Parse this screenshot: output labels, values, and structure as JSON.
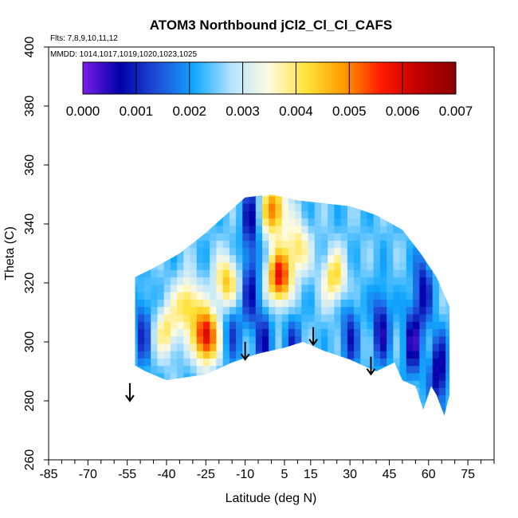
{
  "chart_data": {
    "type": "heatmap",
    "title": "ATOM3 Northbound jCl2_Cl_Cl_CAFS",
    "flights_note": "Flts: 7,8,9,10,11,12",
    "dates_note": "MMDD: 1014,1017,1019,1020,1023,1025",
    "xlabel": "Latitude (deg N)",
    "ylabel": "Theta (C)",
    "xlim": [
      -85,
      85
    ],
    "ylim": [
      260,
      400
    ],
    "x_ticks": [
      -85,
      -70,
      -55,
      -40,
      -25,
      -10,
      5,
      15,
      30,
      45,
      60,
      75
    ],
    "y_ticks": [
      260,
      280,
      300,
      320,
      340,
      360,
      380,
      400
    ],
    "colorbar": {
      "range": [
        0,
        0.007
      ],
      "tick_values": [
        0,
        0.001,
        0.002,
        0.003,
        0.004,
        0.005,
        0.006,
        0.007
      ],
      "tick_labels": [
        "0.000",
        "0.001",
        "0.002",
        "0.003",
        "0.004",
        "0.005",
        "0.006",
        "0.007"
      ],
      "colors": [
        "#7a1fe8",
        "#0000a8",
        "#1f4fd8",
        "#12a8ff",
        "#b8e4ff",
        "#fffbe0",
        "#ffe23a",
        "#ff9a00",
        "#ff1a00",
        "#c00000",
        "#8a0000"
      ]
    },
    "boundary_top": [
      [
        -52,
        322
      ],
      [
        -45,
        325
      ],
      [
        -35,
        330
      ],
      [
        -25,
        337
      ],
      [
        -15,
        345
      ],
      [
        -10,
        349
      ],
      [
        0,
        350
      ],
      [
        10,
        348
      ],
      [
        20,
        347
      ],
      [
        30,
        346
      ],
      [
        40,
        343
      ],
      [
        50,
        338
      ],
      [
        57,
        330
      ],
      [
        63,
        322
      ],
      [
        68,
        312
      ]
    ],
    "boundary_bottom": [
      [
        -52,
        292
      ],
      [
        -48,
        290
      ],
      [
        -40,
        287
      ],
      [
        -25,
        289
      ],
      [
        -15,
        293
      ],
      [
        -5,
        296
      ],
      [
        5,
        298
      ],
      [
        12,
        300
      ],
      [
        20,
        297
      ],
      [
        30,
        294
      ],
      [
        40,
        290
      ],
      [
        47,
        293
      ],
      [
        50,
        287
      ],
      [
        55,
        285
      ],
      [
        58,
        277
      ],
      [
        61,
        285
      ],
      [
        63,
        282
      ],
      [
        66,
        275
      ],
      [
        68,
        282
      ]
    ],
    "hotspots": [
      {
        "lat": -25,
        "theta": 302,
        "value": 0.0062
      },
      {
        "lat": 3,
        "theta": 322,
        "value": 0.0058
      },
      {
        "lat": 1,
        "theta": 345,
        "value": 0.0052
      },
      {
        "lat": -17,
        "theta": 320,
        "value": 0.0046
      },
      {
        "lat": -32,
        "theta": 313,
        "value": 0.0044
      },
      {
        "lat": 24,
        "theta": 322,
        "value": 0.0043
      },
      {
        "lat": 10,
        "theta": 332,
        "value": 0.0041
      },
      {
        "lat": -40,
        "theta": 304,
        "value": 0.004
      }
    ],
    "lowspots": [
      {
        "lat": -8,
        "theta": 318,
        "value": 0.0007
      },
      {
        "lat": -8,
        "theta": 342,
        "value": 0.0006
      },
      {
        "lat": -3,
        "theta": 300,
        "value": 0.0008
      },
      {
        "lat": 42,
        "theta": 305,
        "value": 0.0004
      },
      {
        "lat": 54,
        "theta": 300,
        "value": 0.0002
      },
      {
        "lat": 64,
        "theta": 290,
        "value": 0.0001
      },
      {
        "lat": 58,
        "theta": 318,
        "value": 0.0006
      },
      {
        "lat": -49,
        "theta": 304,
        "value": 0.001
      },
      {
        "lat": -15,
        "theta": 305,
        "value": 0.0012
      },
      {
        "lat": 30,
        "theta": 302,
        "value": 0.0009
      },
      {
        "lat": 8,
        "theta": 298,
        "value": 0.0011
      }
    ],
    "background_value": 0.0024,
    "arrows": [
      {
        "lat": -54,
        "theta": 286
      },
      {
        "lat": -10,
        "theta": 300
      },
      {
        "lat": 16,
        "theta": 305
      },
      {
        "lat": 38,
        "theta": 295
      }
    ]
  }
}
